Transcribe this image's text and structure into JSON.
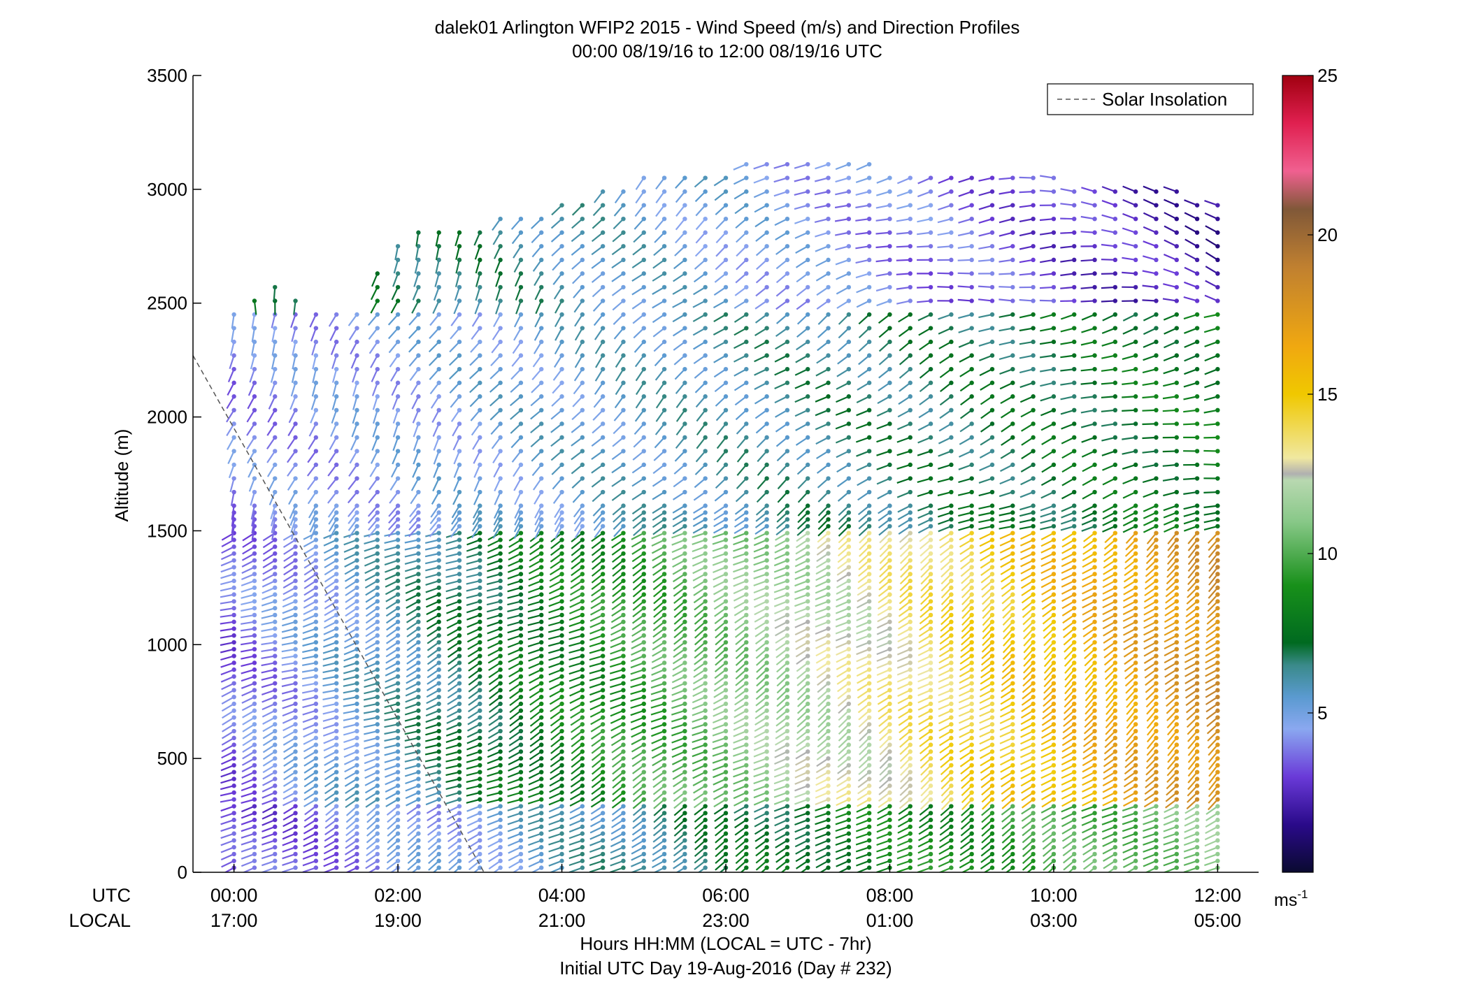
{
  "chart_data": {
    "type": "wind-barb-profile",
    "title": "dalek01 Arlington WFIP2 2015 - Wind Speed (m/s) and Direction Profiles",
    "subtitle": "00:00 08/19/16 to 12:00 08/19/16  UTC",
    "ylabel": "Altitude (m)",
    "ylim": [
      0,
      3500
    ],
    "yticks": [
      0,
      500,
      1000,
      1500,
      2000,
      2500,
      3000,
      3500
    ],
    "xlim_hours": [
      -0.5,
      12.5
    ],
    "xticks_hours": [
      0,
      2,
      4,
      6,
      8,
      10,
      12
    ],
    "utc_row_label": "UTC",
    "local_row_label": "LOCAL",
    "utc_ticks": [
      "00:00",
      "02:00",
      "04:00",
      "06:00",
      "08:00",
      "10:00",
      "12:00"
    ],
    "local_ticks": [
      "17:00",
      "19:00",
      "21:00",
      "23:00",
      "01:00",
      "03:00",
      "05:00"
    ],
    "xlabel_line1": "Hours HH:MM  (LOCAL = UTC - 7hr)",
    "xlabel_line2": "Initial UTC Day 19-Aug-2016 (Day # 232)",
    "legend_label": "Solar Insolation",
    "legend_position": "top-right",
    "solar_insolation": {
      "x": [
        -0.5,
        3.05
      ],
      "y": [
        2270,
        0
      ]
    },
    "colorbar": {
      "range": [
        0,
        25
      ],
      "ticks": [
        5,
        10,
        15,
        20,
        25
      ],
      "unit_base": "ms",
      "unit_exp": "-1",
      "stops": [
        {
          "v": 0,
          "c": "#0a0a30"
        },
        {
          "v": 1.5,
          "c": "#2a0a8a"
        },
        {
          "v": 3,
          "c": "#6a3ad8"
        },
        {
          "v": 4.5,
          "c": "#8aa8f0"
        },
        {
          "v": 5.5,
          "c": "#5a9ad0"
        },
        {
          "v": 6.5,
          "c": "#3a8a8a"
        },
        {
          "v": 7.2,
          "c": "#006a20"
        },
        {
          "v": 9,
          "c": "#18901a"
        },
        {
          "v": 11,
          "c": "#88c888"
        },
        {
          "v": 12.3,
          "c": "#b8d8b0"
        },
        {
          "v": 12.5,
          "c": "#b0b0b0"
        },
        {
          "v": 13,
          "c": "#f0e8a0"
        },
        {
          "v": 15,
          "c": "#f0c800"
        },
        {
          "v": 16.5,
          "c": "#f0a810"
        },
        {
          "v": 19,
          "c": "#c08030"
        },
        {
          "v": 20.8,
          "c": "#805838"
        },
        {
          "v": 22,
          "c": "#f06090"
        },
        {
          "v": 23.5,
          "c": "#e02050"
        },
        {
          "v": 25,
          "c": "#a00010"
        }
      ]
    },
    "profile_interval_hours": 0.25,
    "profile_times_hours": [
      0,
      12
    ],
    "layers": [
      {
        "alt_min": 0,
        "alt_max": 300,
        "speed_start": 3,
        "speed_end": 11,
        "dir_deg_start": 240,
        "dir_deg_end": 240
      },
      {
        "alt_min": 300,
        "alt_max": 1500,
        "speed_start": 3.5,
        "speed_end": 18,
        "dir_deg_start": 250,
        "dir_deg_end": 230
      },
      {
        "alt_min": 1500,
        "alt_max": 2500,
        "speed_start": 4,
        "speed_end": 8,
        "dir_deg_start": 200,
        "dir_deg_end": 260
      },
      {
        "alt_min": 2500,
        "alt_max": 3200,
        "speed_start": 8,
        "speed_end": 2,
        "dir_deg_start": 180,
        "dir_deg_end": 290
      }
    ],
    "top_heights_m": [
      {
        "t": 0,
        "h": 2450
      },
      {
        "t": 0.5,
        "h": 2600
      },
      {
        "t": 1,
        "h": 2500
      },
      {
        "t": 1.5,
        "h": 2500
      },
      {
        "t": 2,
        "h": 2800
      },
      {
        "t": 3,
        "h": 2850
      },
      {
        "t": 4,
        "h": 2950
      },
      {
        "t": 5,
        "h": 3080
      },
      {
        "t": 6,
        "h": 3100
      },
      {
        "t": 7,
        "h": 3150
      },
      {
        "t": 8,
        "h": 3100
      },
      {
        "t": 9,
        "h": 3050
      },
      {
        "t": 10,
        "h": 3050
      },
      {
        "t": 11,
        "h": 3020
      },
      {
        "t": 12,
        "h": 2970
      }
    ]
  }
}
